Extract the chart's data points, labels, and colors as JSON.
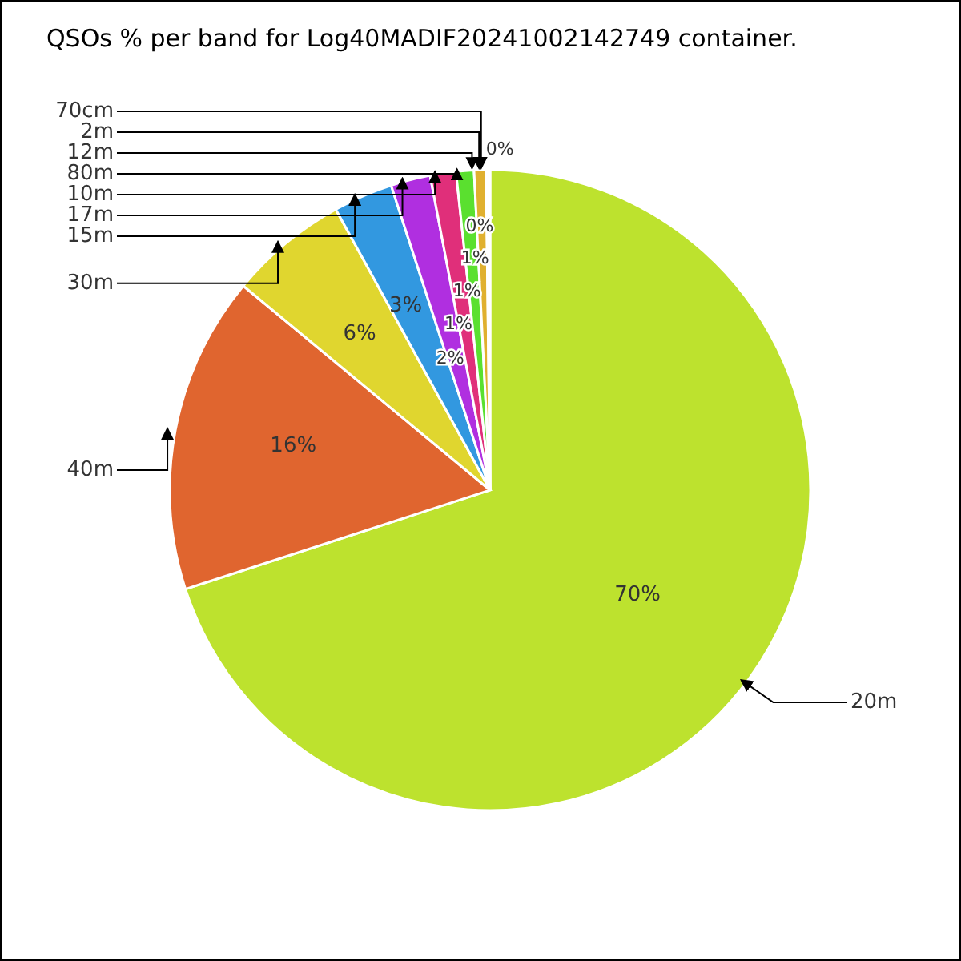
{
  "chart_data": {
    "type": "pie",
    "title": "QSOs % per band for Log40MADIF20241002142749 container.",
    "categories": [
      "20m",
      "40m",
      "30m",
      "15m",
      "17m",
      "10m",
      "80m",
      "12m",
      "2m",
      "70cm"
    ],
    "values": [
      70,
      16,
      6,
      3,
      2,
      1.3,
      0.9,
      0.6,
      0.1,
      0.1
    ],
    "colors": [
      "#bde22e",
      "#e0652f",
      "#e0d62f",
      "#3298e0",
      "#b02fe0",
      "#e02f7a",
      "#5ae02f",
      "#e0b02f",
      "#e06a2f",
      "#e02f2f"
    ],
    "value_labels": [
      "70%",
      "16%",
      "6%",
      "3%",
      "2%",
      "1%",
      "1%",
      "1%",
      "0%",
      "0%"
    ]
  }
}
